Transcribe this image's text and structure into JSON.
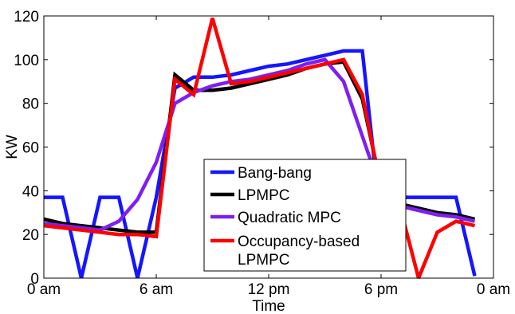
{
  "chart_data": {
    "type": "line",
    "xlabel": "Time",
    "ylabel": "KW",
    "xlim": [
      0,
      24
    ],
    "ylim": [
      0,
      120
    ],
    "x_ticks": [
      {
        "value": 0,
        "label": "0 am"
      },
      {
        "value": 6,
        "label": "6 am"
      },
      {
        "value": 12,
        "label": "12 pm"
      },
      {
        "value": 18,
        "label": "6 pm"
      },
      {
        "value": 24,
        "label": "0 am"
      }
    ],
    "y_ticks": [
      0,
      20,
      40,
      60,
      80,
      100,
      120
    ],
    "grid": false,
    "legend_position": "center",
    "series": [
      {
        "name": "Bang-bang",
        "color": "#1515ff",
        "points": [
          [
            0,
            37
          ],
          [
            1,
            37
          ],
          [
            2,
            0
          ],
          [
            3,
            37
          ],
          [
            4,
            37
          ],
          [
            5,
            0
          ],
          [
            6,
            37
          ],
          [
            7,
            87
          ],
          [
            8,
            92
          ],
          [
            9,
            92
          ],
          [
            10,
            93
          ],
          [
            11,
            95
          ],
          [
            12,
            97
          ],
          [
            13,
            98
          ],
          [
            14,
            100
          ],
          [
            15,
            102
          ],
          [
            16,
            104
          ],
          [
            17,
            104
          ],
          [
            18,
            25
          ],
          [
            19,
            37
          ],
          [
            20,
            37
          ],
          [
            21,
            37
          ],
          [
            22,
            37
          ],
          [
            23,
            1
          ]
        ]
      },
      {
        "name": "LPMPC",
        "color": "#000000",
        "points": [
          [
            0,
            27
          ],
          [
            1,
            25
          ],
          [
            2,
            24
          ],
          [
            3,
            23
          ],
          [
            4,
            22
          ],
          [
            5,
            21
          ],
          [
            6,
            21
          ],
          [
            7,
            93
          ],
          [
            8,
            86
          ],
          [
            9,
            86
          ],
          [
            10,
            87
          ],
          [
            11,
            89
          ],
          [
            12,
            91
          ],
          [
            13,
            93
          ],
          [
            14,
            96
          ],
          [
            15,
            98
          ],
          [
            16,
            99
          ],
          [
            17,
            82
          ],
          [
            18,
            42
          ],
          [
            19,
            34
          ],
          [
            20,
            32
          ],
          [
            21,
            30
          ],
          [
            22,
            29
          ],
          [
            23,
            27
          ]
        ]
      },
      {
        "name": "Quadratic MPC",
        "color": "#7f1ff0",
        "points": [
          [
            0,
            25
          ],
          [
            1,
            24
          ],
          [
            2,
            23
          ],
          [
            3,
            22
          ],
          [
            4,
            26
          ],
          [
            5,
            36
          ],
          [
            6,
            53
          ],
          [
            7,
            80
          ],
          [
            8,
            85
          ],
          [
            9,
            88
          ],
          [
            10,
            90
          ],
          [
            11,
            91
          ],
          [
            12,
            93
          ],
          [
            13,
            95
          ],
          [
            14,
            98
          ],
          [
            15,
            100
          ],
          [
            16,
            90
          ],
          [
            17,
            65
          ],
          [
            18,
            40
          ],
          [
            19,
            33
          ],
          [
            20,
            31
          ],
          [
            21,
            29
          ],
          [
            22,
            28
          ],
          [
            23,
            26
          ]
        ]
      },
      {
        "name": "Occupancy-based LPMPC",
        "label_lines": [
          "Occupancy-based",
          "LPMPC"
        ],
        "color": "#ff0000",
        "points": [
          [
            0,
            24
          ],
          [
            1,
            23
          ],
          [
            2,
            22
          ],
          [
            3,
            21
          ],
          [
            4,
            20
          ],
          [
            5,
            20
          ],
          [
            6,
            19
          ],
          [
            7,
            91
          ],
          [
            8,
            84
          ],
          [
            9,
            119
          ],
          [
            10,
            89
          ],
          [
            11,
            90
          ],
          [
            12,
            92
          ],
          [
            13,
            94
          ],
          [
            14,
            96
          ],
          [
            15,
            98
          ],
          [
            16,
            100
          ],
          [
            17,
            84
          ],
          [
            18,
            41
          ],
          [
            19,
            33
          ],
          [
            20,
            0
          ],
          [
            21,
            21
          ],
          [
            22,
            26
          ],
          [
            23,
            24
          ]
        ]
      }
    ]
  }
}
